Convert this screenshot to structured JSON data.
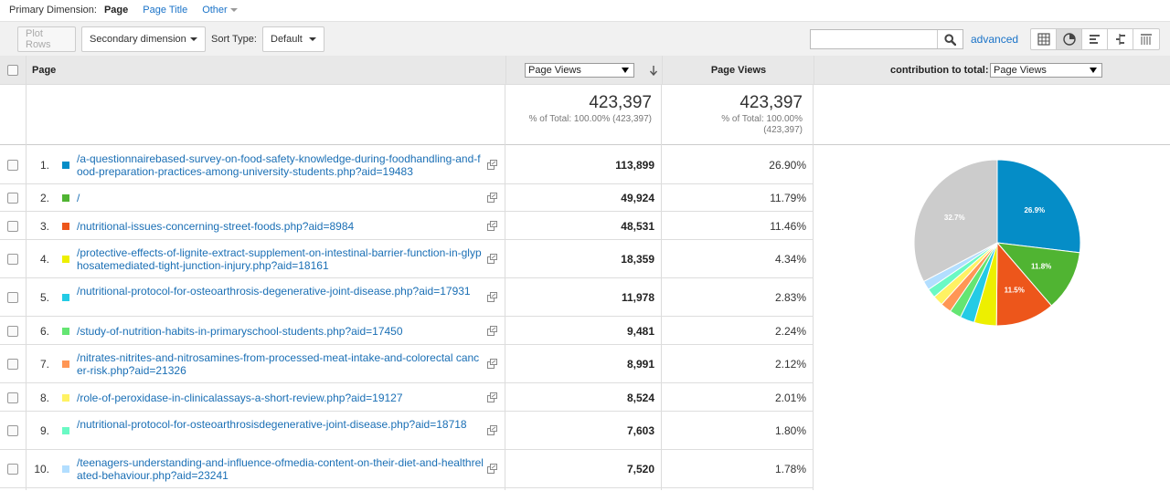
{
  "dimension_bar": {
    "label": "Primary Dimension:",
    "active": "Page",
    "options": [
      "Page Title",
      "Other"
    ]
  },
  "toolbar": {
    "plot_rows": "Plot Rows",
    "secondary_dimension": "Secondary dimension",
    "sort_type_label": "Sort Type:",
    "sort_type_value": "Default",
    "search_value": "",
    "advanced": "advanced",
    "view_icons": [
      "table-view-icon",
      "pie-view-icon",
      "performance-view-icon",
      "comparison-view-icon",
      "pivot-view-icon"
    ],
    "active_view": "pie-view-icon"
  },
  "table": {
    "headers": {
      "page": "Page",
      "metric_select": "Page Views",
      "page_views": "Page Views",
      "contribution_label": "contribution to total:",
      "contribution_select": "Page Views"
    },
    "totals": {
      "metric_value": "423,397",
      "metric_sub": "% of Total: 100.00% (423,397)",
      "pv_value": "423,397",
      "pv_sub1": "% of Total: 100.00%",
      "pv_sub2": "(423,397)"
    },
    "rows": [
      {
        "index": "1.",
        "color": "#058dc7",
        "url": "/a-questionnairebased-survey-on-food-safety-knowledge-during-foodhandling-and-food-preparation-practices-among-university-students.php?aid=19483",
        "views": "113,899",
        "pct": "26.90%"
      },
      {
        "index": "2.",
        "color": "#50b432",
        "url": "/",
        "views": "49,924",
        "pct": "11.79%"
      },
      {
        "index": "3.",
        "color": "#ed561b",
        "url": "/nutritional-issues-concerning-street-foods.php?aid=8984",
        "views": "48,531",
        "pct": "11.46%"
      },
      {
        "index": "4.",
        "color": "#edef00",
        "url": "/protective-effects-of-lignite-extract-supplement-on-intestinal-barrier-function-in-glyphosatemediated-tight-junction-injury.php?aid=18161",
        "views": "18,359",
        "pct": "4.34%"
      },
      {
        "index": "5.",
        "color": "#24cbe5",
        "url": "/nutritional-protocol-for-osteoarthrosis-degenerative-joint-disease.php?aid=17931",
        "views": "11,978",
        "pct": "2.83%"
      },
      {
        "index": "6.",
        "color": "#64e572",
        "url": "/study-of-nutrition-habits-in-primaryschool-students.php?aid=17450",
        "views": "9,481",
        "pct": "2.24%"
      },
      {
        "index": "7.",
        "color": "#ff9655",
        "url": "/nitrates-nitrites-and-nitrosamines-from-processed-meat-intake-and-colorectal cancer-risk.php?aid=21326",
        "views": "8,991",
        "pct": "2.12%"
      },
      {
        "index": "8.",
        "color": "#fff263",
        "url": "/role-of-peroxidase-in-clinicalassays-a-short-review.php?aid=19127",
        "views": "8,524",
        "pct": "2.01%"
      },
      {
        "index": "9.",
        "color": "#6af9c4",
        "url": "/nutritional-protocol-for-osteoarthrosisdegenerative-joint-disease.php?aid=18718",
        "views": "7,603",
        "pct": "1.80%"
      },
      {
        "index": "10.",
        "color": "#b2deff",
        "url": "/teenagers-understanding-and-influence-ofmedia-content-on-their-diet-and-healthrelated-behaviour.php?aid=23241",
        "views": "7,520",
        "pct": "1.78%"
      }
    ]
  },
  "chart_data": {
    "type": "pie",
    "categories": [
      "1",
      "2",
      "3",
      "4",
      "5",
      "6",
      "7",
      "8",
      "9",
      "10",
      "Other"
    ],
    "values": [
      26.9,
      11.79,
      11.46,
      4.34,
      2.83,
      2.24,
      2.12,
      2.01,
      1.8,
      1.78,
      32.73
    ],
    "colors": [
      "#058dc7",
      "#50b432",
      "#ed561b",
      "#edef00",
      "#24cbe5",
      "#64e572",
      "#ff9655",
      "#fff263",
      "#6af9c4",
      "#b2deff",
      "#cccccc"
    ],
    "labels": [
      "26.9%",
      "11.8%",
      "11.5%",
      "",
      "",
      "",
      "",
      "",
      "",
      "",
      "32.7%"
    ]
  }
}
